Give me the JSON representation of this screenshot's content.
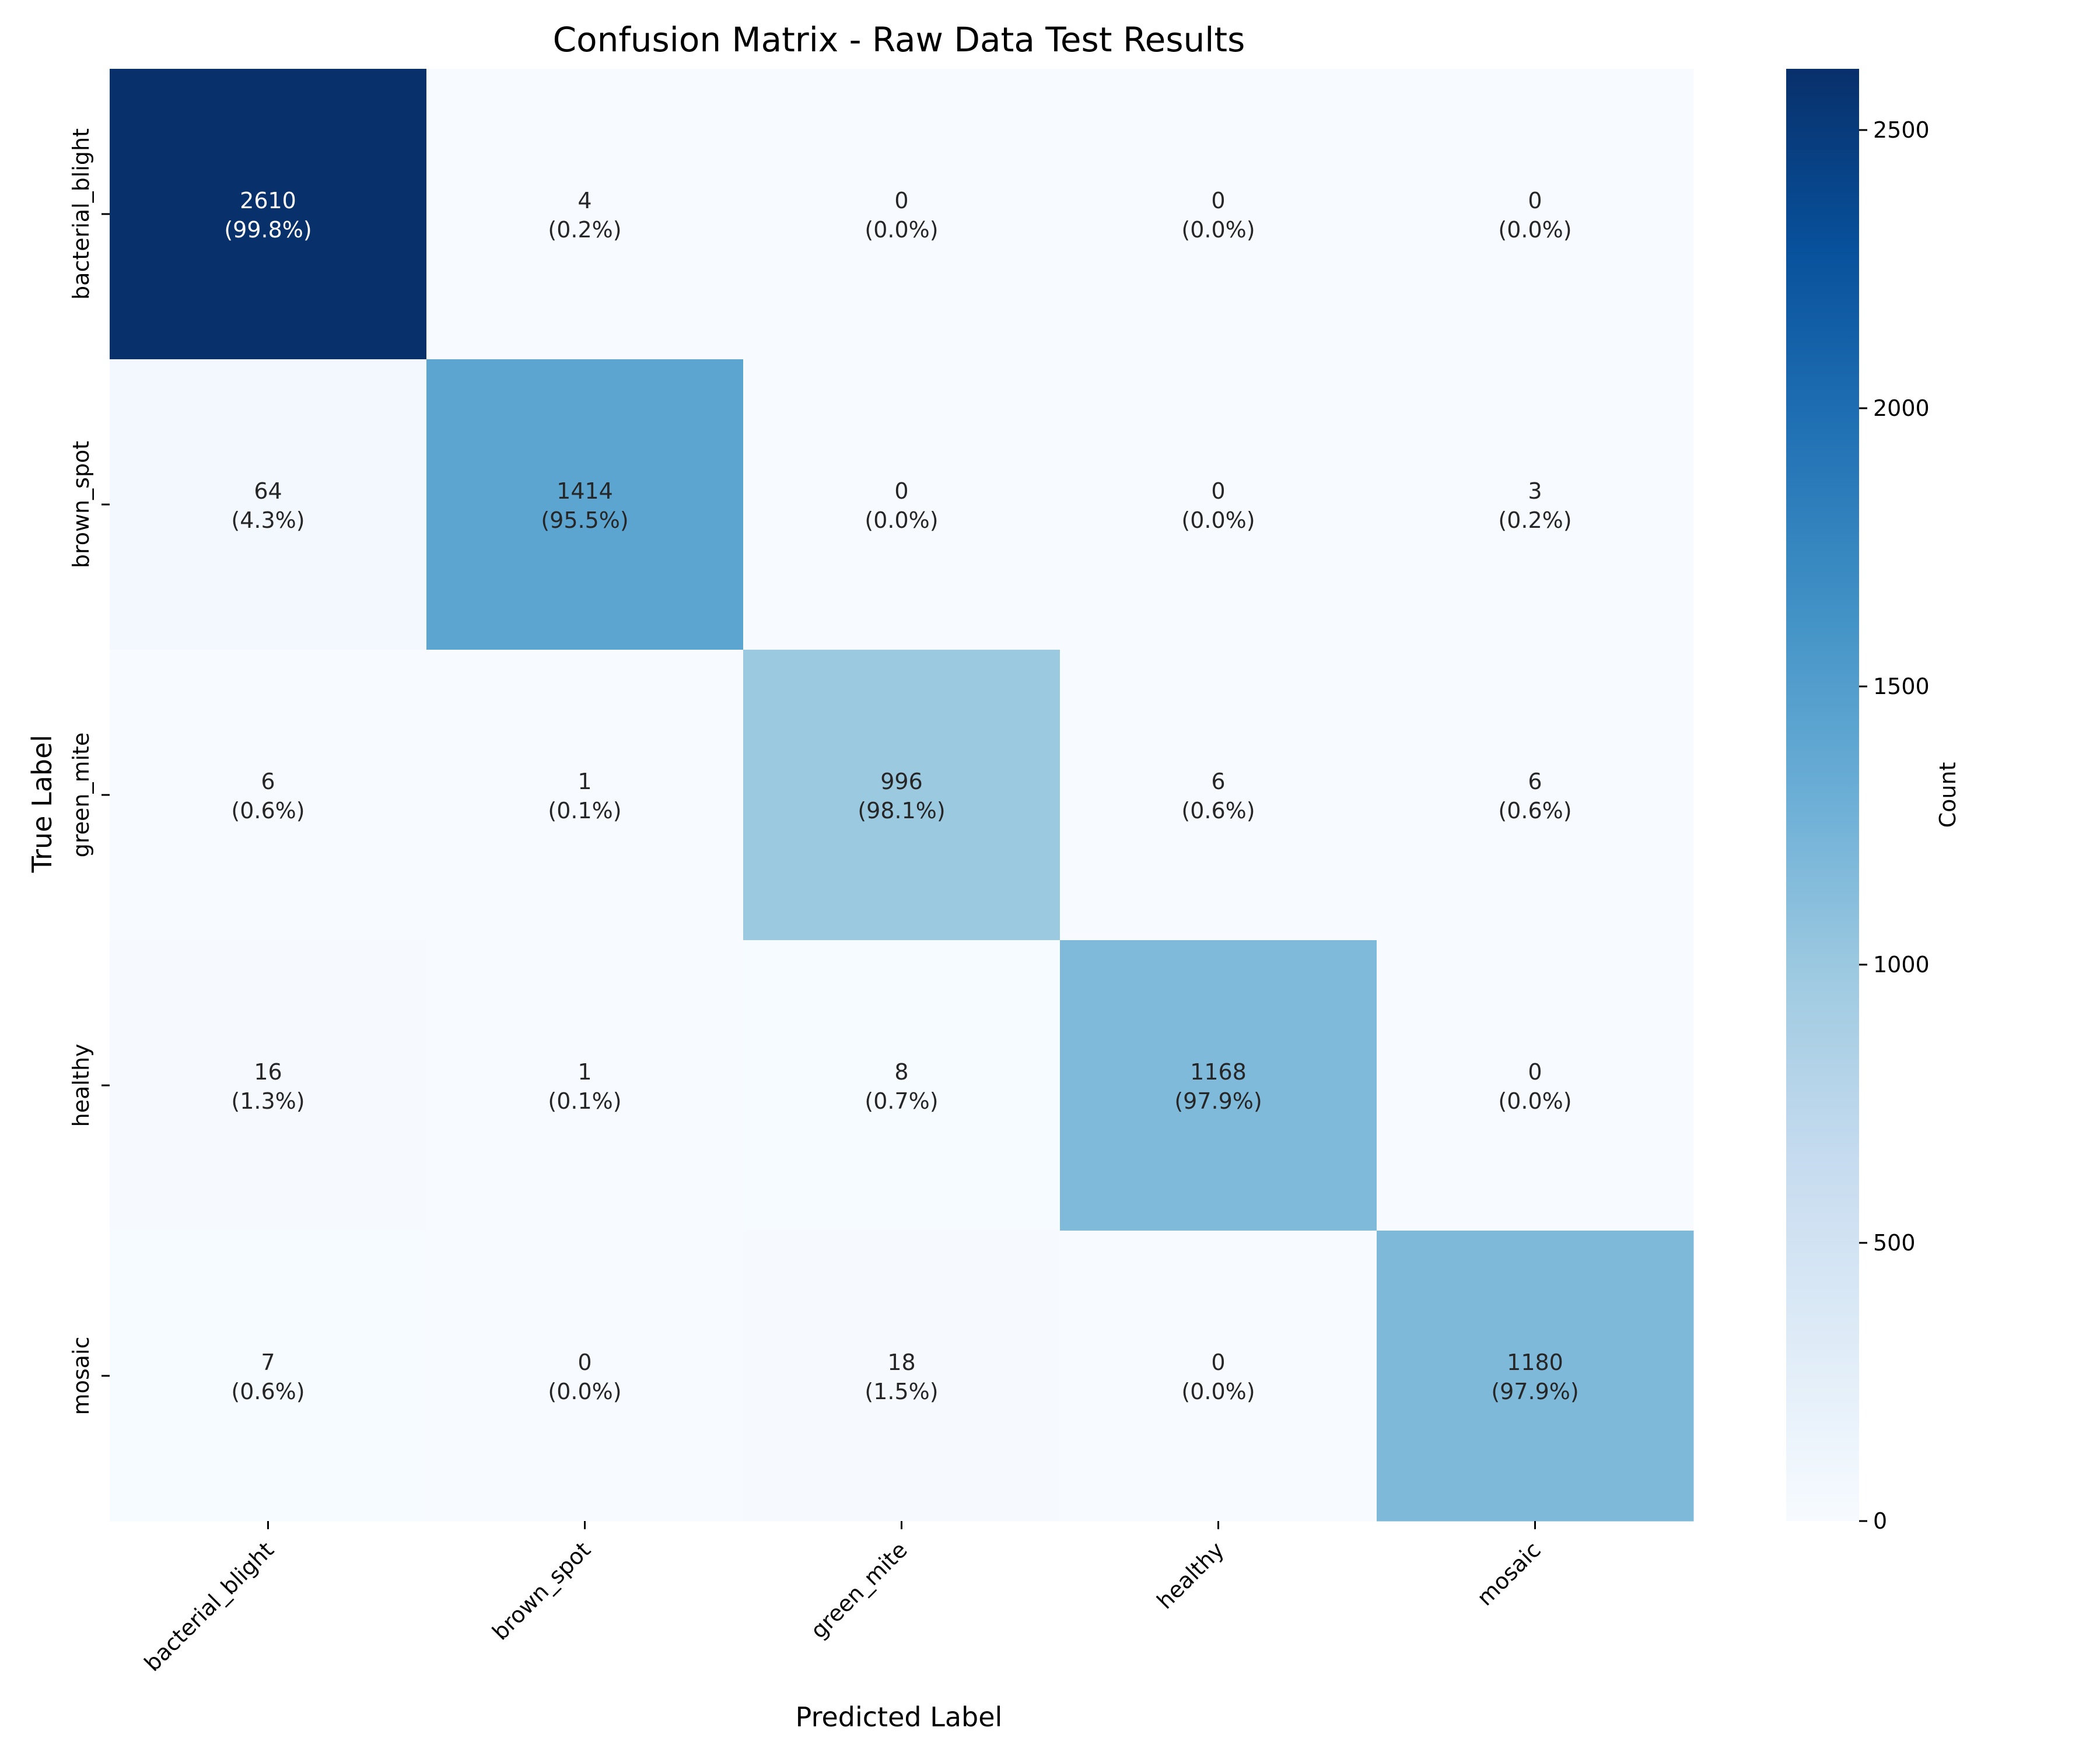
{
  "chart_data": {
    "type": "heatmap",
    "title": "Confusion Matrix - Raw Data Test Results",
    "xlabel": "Predicted Label",
    "ylabel": "True Label",
    "x_categories": [
      "bacterial_blight",
      "brown_spot",
      "green_mite",
      "healthy",
      "mosaic"
    ],
    "y_categories": [
      "bacterial_blight",
      "brown_spot",
      "green_mite",
      "healthy",
      "mosaic"
    ],
    "values": [
      [
        2610,
        4,
        0,
        0,
        0
      ],
      [
        64,
        1414,
        0,
        0,
        3
      ],
      [
        6,
        1,
        996,
        6,
        6
      ],
      [
        16,
        1,
        8,
        1168,
        0
      ],
      [
        7,
        0,
        18,
        0,
        1180
      ]
    ],
    "percent_labels": [
      [
        "(99.8%)",
        "(0.2%)",
        "(0.0%)",
        "(0.0%)",
        "(0.0%)"
      ],
      [
        "(4.3%)",
        "(95.5%)",
        "(0.0%)",
        "(0.0%)",
        "(0.2%)"
      ],
      [
        "(0.6%)",
        "(0.1%)",
        "(98.1%)",
        "(0.6%)",
        "(0.6%)"
      ],
      [
        "(1.3%)",
        "(0.1%)",
        "(0.7%)",
        "(97.9%)",
        "(0.0%)"
      ],
      [
        "(0.6%)",
        "(0.0%)",
        "(1.5%)",
        "(0.0%)",
        "(97.9%)"
      ]
    ],
    "colorbar": {
      "label": "Count",
      "range": [
        0,
        2610
      ],
      "ticks": [
        0,
        500,
        1000,
        1500,
        2000,
        2500
      ]
    },
    "colormap": "Blues",
    "colors": {
      "low": "#f7fbff",
      "high": "#08306b",
      "text_dark": "#262626",
      "text_light": "#ffffff"
    }
  }
}
